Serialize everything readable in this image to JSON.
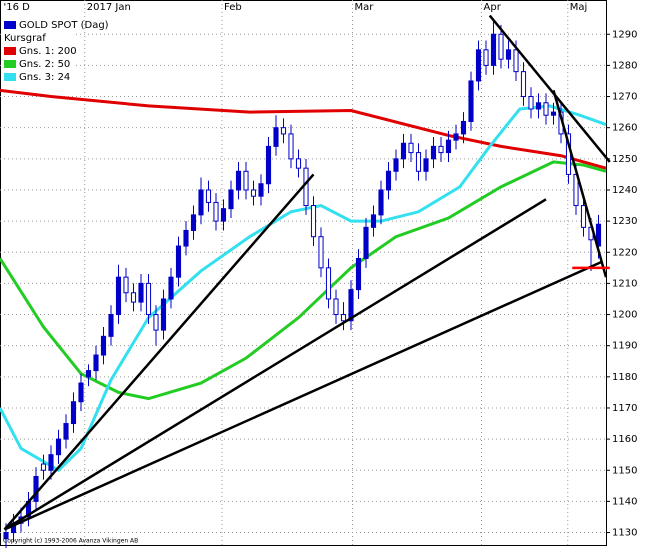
{
  "chart_data": {
    "type": "candlestick",
    "title": "GOLD SPOT (Dag)",
    "subtitle": "Kursgraf",
    "color": "#0000c8",
    "copyright": "Copyright (c) 1993-2006 Avanza Vikingen AB",
    "ylim": [
      1126,
      1301
    ],
    "yticks": [
      1130,
      1140,
      1150,
      1160,
      1170,
      1180,
      1190,
      1200,
      1210,
      1220,
      1230,
      1240,
      1250,
      1260,
      1270,
      1280,
      1290
    ],
    "xlim": [
      -0.8,
      80
    ],
    "xticks": [
      {
        "value": -0.6,
        "label": "'16 D"
      },
      {
        "value": 10.5,
        "label": "2017 Jan"
      },
      {
        "value": 28.8,
        "label": "Feb"
      },
      {
        "value": 46.2,
        "label": "Mar"
      },
      {
        "value": 63.4,
        "label": "Apr"
      },
      {
        "value": 74.9,
        "label": "Maj"
      }
    ],
    "grid": true,
    "candles": [
      [
        1128,
        1133,
        1125,
        1130
      ],
      [
        1130,
        1136,
        1127,
        1133
      ],
      [
        1133,
        1138,
        1130,
        1135
      ],
      [
        1135,
        1143,
        1132,
        1140
      ],
      [
        1140,
        1151,
        1137,
        1148
      ],
      [
        1152,
        1155,
        1147,
        1150
      ],
      [
        1150,
        1158,
        1147,
        1155
      ],
      [
        1155,
        1163,
        1152,
        1160
      ],
      [
        1160,
        1168,
        1157,
        1165
      ],
      [
        1165,
        1175,
        1162,
        1172
      ],
      [
        1172,
        1181,
        1169,
        1178
      ],
      [
        1180,
        1184,
        1177,
        1182
      ],
      [
        1182,
        1190,
        1179,
        1187
      ],
      [
        1187,
        1196,
        1184,
        1193
      ],
      [
        1193,
        1203,
        1190,
        1200
      ],
      [
        1200,
        1216,
        1197,
        1212
      ],
      [
        1212,
        1215,
        1204,
        1207
      ],
      [
        1207,
        1210,
        1201,
        1204
      ],
      [
        1204,
        1213,
        1201,
        1210
      ],
      [
        1210,
        1213,
        1197,
        1200
      ],
      [
        1200,
        1203,
        1190,
        1195
      ],
      [
        1195,
        1208,
        1192,
        1205
      ],
      [
        1205,
        1215,
        1202,
        1212
      ],
      [
        1212,
        1225,
        1209,
        1222
      ],
      [
        1222,
        1230,
        1219,
        1227
      ],
      [
        1227,
        1235,
        1224,
        1232
      ],
      [
        1232,
        1244,
        1229,
        1240
      ],
      [
        1240,
        1243,
        1233,
        1236
      ],
      [
        1236,
        1239,
        1227,
        1230
      ],
      [
        1230,
        1237,
        1227,
        1234
      ],
      [
        1234,
        1243,
        1231,
        1240
      ],
      [
        1240,
        1249,
        1237,
        1246
      ],
      [
        1246,
        1249,
        1237,
        1240
      ],
      [
        1240,
        1243,
        1235,
        1238
      ],
      [
        1238,
        1245,
        1235,
        1242
      ],
      [
        1242,
        1257,
        1239,
        1254
      ],
      [
        1254,
        1264,
        1251,
        1260
      ],
      [
        1260,
        1263,
        1255,
        1258
      ],
      [
        1258,
        1261,
        1247,
        1250
      ],
      [
        1250,
        1253,
        1244,
        1247
      ],
      [
        1247,
        1250,
        1232,
        1235
      ],
      [
        1235,
        1238,
        1222,
        1225
      ],
      [
        1225,
        1228,
        1212,
        1215
      ],
      [
        1215,
        1218,
        1202,
        1205
      ],
      [
        1205,
        1208,
        1197,
        1200
      ],
      [
        1200,
        1204,
        1195,
        1198
      ],
      [
        1198,
        1211,
        1195,
        1208
      ],
      [
        1208,
        1221,
        1205,
        1218
      ],
      [
        1218,
        1231,
        1215,
        1228
      ],
      [
        1228,
        1235,
        1225,
        1232
      ],
      [
        1232,
        1243,
        1229,
        1240
      ],
      [
        1240,
        1249,
        1237,
        1246
      ],
      [
        1246,
        1253,
        1243,
        1250
      ],
      [
        1250,
        1258,
        1247,
        1255
      ],
      [
        1255,
        1258,
        1249,
        1252
      ],
      [
        1252,
        1255,
        1243,
        1246
      ],
      [
        1246,
        1253,
        1243,
        1250
      ],
      [
        1250,
        1257,
        1247,
        1254
      ],
      [
        1254,
        1257,
        1249,
        1252
      ],
      [
        1252,
        1259,
        1249,
        1256
      ],
      [
        1256,
        1261,
        1253,
        1258
      ],
      [
        1258,
        1265,
        1255,
        1262
      ],
      [
        1262,
        1278,
        1259,
        1275
      ],
      [
        1275,
        1288,
        1272,
        1285
      ],
      [
        1285,
        1288,
        1277,
        1280
      ],
      [
        1280,
        1295,
        1277,
        1290
      ],
      [
        1290,
        1293,
        1279,
        1282
      ],
      [
        1282,
        1288,
        1279,
        1285
      ],
      [
        1285,
        1288,
        1275,
        1278
      ],
      [
        1278,
        1281,
        1267,
        1270
      ],
      [
        1270,
        1273,
        1263,
        1266
      ],
      [
        1266,
        1271,
        1263,
        1268
      ],
      [
        1268,
        1271,
        1261,
        1264
      ],
      [
        1264,
        1268,
        1261,
        1265
      ],
      [
        1265,
        1268,
        1255,
        1258
      ],
      [
        1258,
        1261,
        1242,
        1245
      ],
      [
        1245,
        1248,
        1232,
        1235
      ],
      [
        1235,
        1238,
        1225,
        1228
      ],
      [
        1228,
        1231,
        1214,
        1224
      ],
      [
        1222,
        1232,
        1218,
        1229
      ]
    ],
    "series": [
      {
        "name": "Gns. 1: 200",
        "color": "#e00000",
        "x": [
          -0.8,
          6,
          19,
          32.5,
          46,
          59,
          66,
          74,
          80
        ],
        "values": [
          1272,
          1270,
          1267,
          1265,
          1265.5,
          1257.5,
          1254,
          1251,
          1247
        ]
      },
      {
        "name": "Gns. 2: 50",
        "color": "#22cc22",
        "x": [
          -0.8,
          5,
          10,
          15,
          19,
          26,
          32,
          39,
          46,
          52,
          59,
          66,
          73,
          77,
          80
        ],
        "values": [
          1218,
          1196,
          1181,
          1175,
          1173,
          1178,
          1186,
          1199,
          1215,
          1225,
          1231,
          1241,
          1249,
          1248,
          1246
        ]
      },
      {
        "name": "Gns. 3: 24",
        "color": "#33e0f0",
        "x": [
          -0.8,
          2,
          7,
          10,
          14,
          19,
          26,
          32.5,
          38,
          42,
          46,
          50,
          55,
          60.5,
          64.5,
          68.5,
          72.5,
          76.5,
          80
        ],
        "values": [
          1170,
          1157,
          1150,
          1157,
          1179,
          1199,
          1214,
          1225,
          1233,
          1235,
          1230,
          1230,
          1233,
          1241,
          1254,
          1266,
          1267,
          1264,
          1261
        ]
      }
    ],
    "trendlines": [
      {
        "color": "#000000",
        "x": [
          -0.2,
          41
        ],
        "values": [
          1131,
          1245
        ]
      },
      {
        "color": "#000000",
        "x": [
          -0.2,
          72
        ],
        "values": [
          1131,
          1237
        ]
      },
      {
        "color": "#000000",
        "x": [
          -0.2,
          79.5
        ],
        "values": [
          1131,
          1217
        ]
      },
      {
        "color": "#000000",
        "x": [
          64.5,
          80.5
        ],
        "values": [
          1296,
          1249
        ]
      },
      {
        "color": "#000000",
        "x": [
          73,
          80
        ],
        "values": [
          1272,
          1212
        ]
      },
      {
        "color": "#ff0000",
        "x": [
          75.5,
          80.5
        ],
        "values": [
          1215,
          1215
        ]
      }
    ]
  }
}
